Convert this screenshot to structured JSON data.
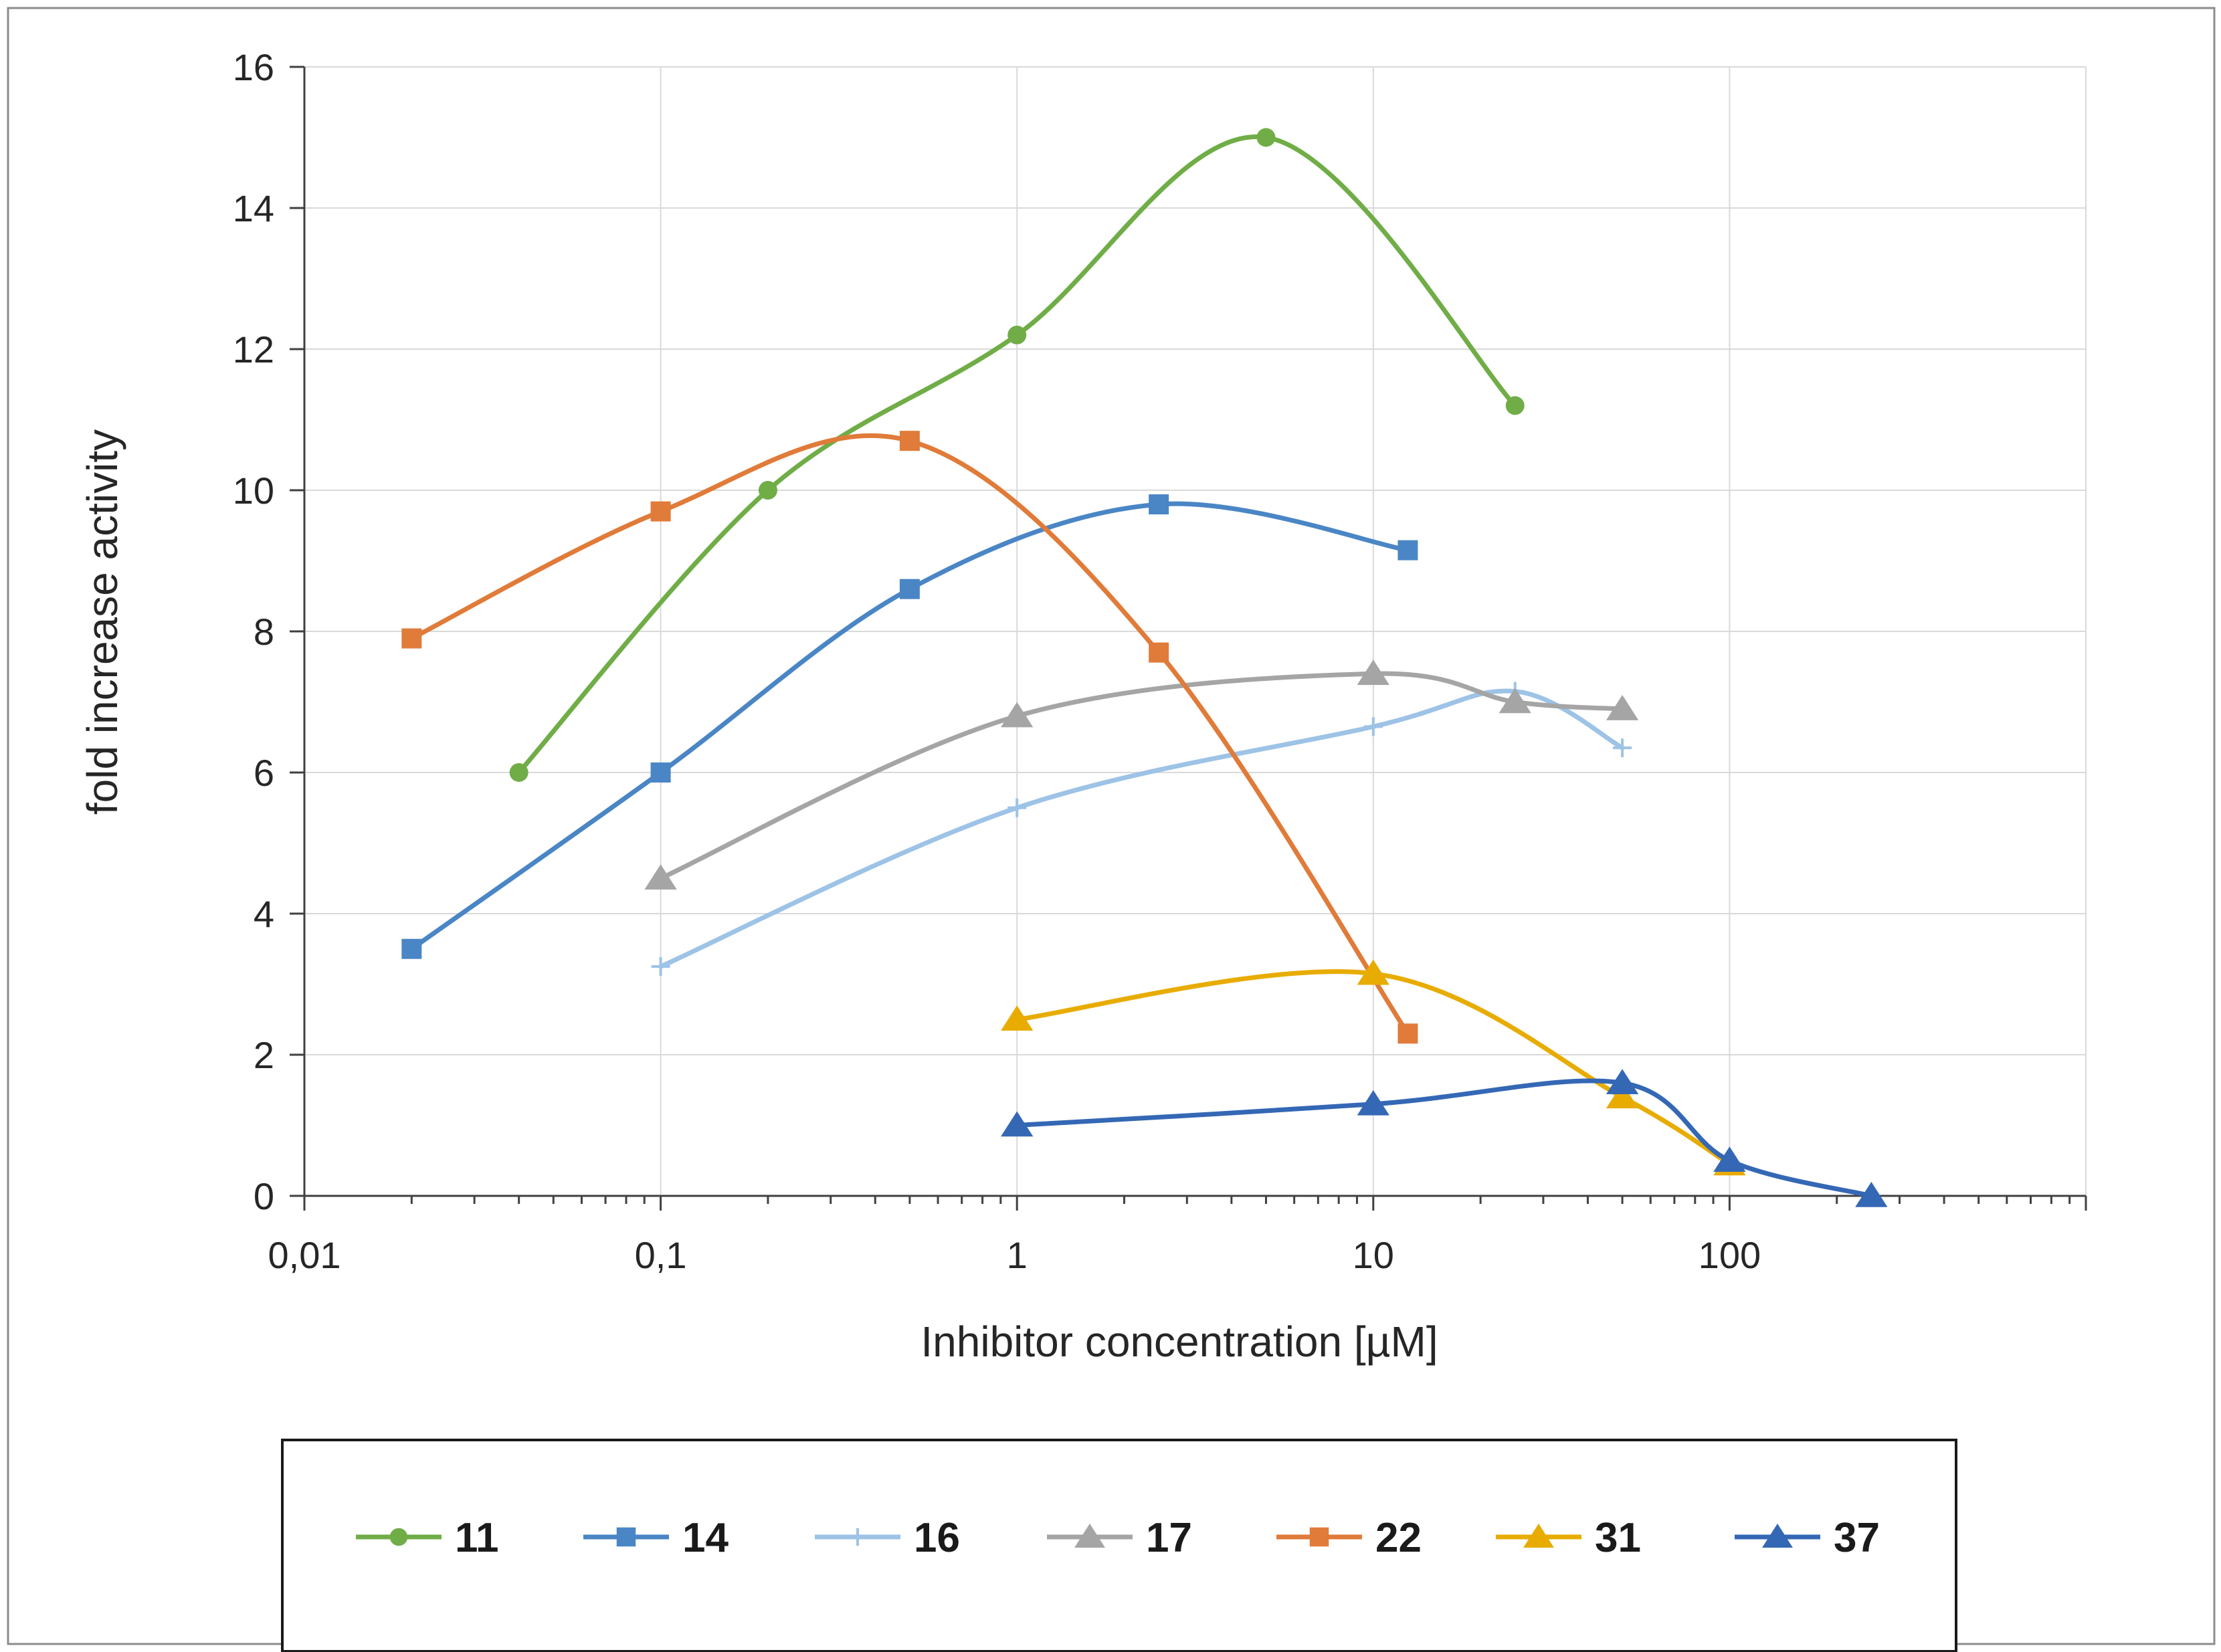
{
  "chart_data": {
    "type": "line",
    "title": "",
    "xlabel": "Inhibitor concentration [µM]",
    "ylabel": "fold increase activity",
    "x_scale": "log",
    "xlim": [
      0.01,
      1000
    ],
    "ylim": [
      0,
      16
    ],
    "y_ticks": [
      "0",
      "2",
      "4",
      "6",
      "8",
      "10",
      "12",
      "14",
      "16"
    ],
    "x_ticks": [
      {
        "value": 0.01,
        "label": "0,01"
      },
      {
        "value": 0.1,
        "label": "0,1"
      },
      {
        "value": 1,
        "label": "1"
      },
      {
        "value": 10,
        "label": "10"
      },
      {
        "value": 100,
        "label": "100"
      }
    ],
    "grid": true,
    "smooth": true,
    "legend_position": "bottom",
    "series": [
      {
        "name": "11",
        "color": "#70AD47",
        "marker": "circle",
        "x": [
          0.04,
          0.2,
          1,
          5,
          25
        ],
        "y": [
          6.0,
          10.0,
          12.2,
          15.0,
          11.2
        ]
      },
      {
        "name": "14",
        "color": "#4A86C5",
        "marker": "square",
        "x": [
          0.02,
          0.1,
          0.5,
          2.5,
          12.5
        ],
        "y": [
          3.5,
          6.0,
          8.6,
          9.8,
          9.15
        ]
      },
      {
        "name": "16",
        "color": "#9DC3E6",
        "marker": "plus",
        "x": [
          0.1,
          1,
          10,
          25,
          50
        ],
        "y": [
          3.25,
          5.5,
          6.65,
          7.15,
          6.35
        ]
      },
      {
        "name": "17",
        "color": "#A5A5A5",
        "marker": "triangle",
        "x": [
          0.1,
          1,
          10,
          25,
          50
        ],
        "y": [
          4.5,
          6.8,
          7.4,
          7.0,
          6.9
        ]
      },
      {
        "name": "22",
        "color": "#E07B39",
        "marker": "square",
        "x": [
          0.02,
          0.1,
          0.5,
          2.5,
          12.5
        ],
        "y": [
          7.9,
          9.7,
          10.7,
          7.7,
          2.3
        ]
      },
      {
        "name": "31",
        "color": "#E8AC00",
        "marker": "triangle",
        "x": [
          1,
          10,
          50,
          100
        ],
        "y": [
          2.5,
          3.15,
          1.4,
          0.45
        ]
      },
      {
        "name": "37",
        "color": "#3468B5",
        "marker": "triangle",
        "x": [
          1,
          10,
          50,
          100,
          250
        ],
        "y": [
          1.0,
          1.3,
          1.6,
          0.5,
          0.0
        ]
      }
    ]
  }
}
